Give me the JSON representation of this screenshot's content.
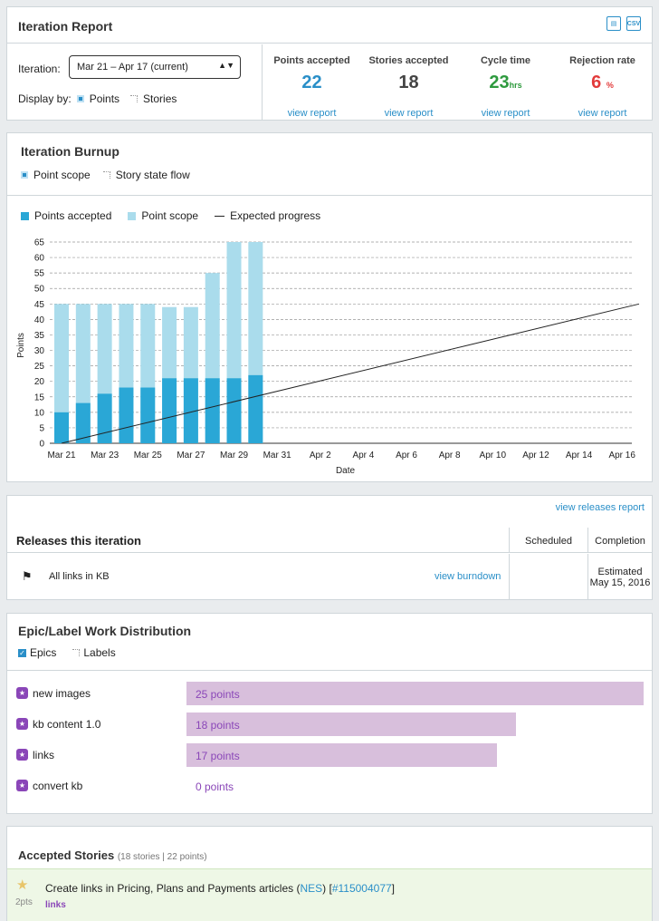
{
  "report": {
    "title": "Iteration Report",
    "iteration_label": "Iteration:",
    "iteration_value": "Mar 21 – Apr 17 (current)",
    "display_by": "Display by:",
    "display_points": "Points",
    "display_stories": "Stories",
    "stats": [
      {
        "label": "Points accepted",
        "value": "22",
        "unit": "",
        "color": "#2a8fc8",
        "link": "view report"
      },
      {
        "label": "Stories accepted",
        "value": "18",
        "unit": "",
        "color": "#444444",
        "link": "view report"
      },
      {
        "label": "Cycle time",
        "value": "23",
        "unit": "hrs",
        "color": "#2e9a3e",
        "link": "view report"
      },
      {
        "label": "Rejection rate",
        "value": "6",
        "unit": "%",
        "color": "#e23b3b",
        "link": "view report"
      }
    ]
  },
  "burnup": {
    "title": "Iteration Burnup",
    "opt_point_scope": "Point scope",
    "opt_story_state": "Story state flow",
    "legend": {
      "accepted": "Points accepted",
      "scope": "Point scope",
      "expected": "Expected progress"
    },
    "colors": {
      "accepted": "#2aa7d6",
      "scope": "#aadcec",
      "expected": "#222222"
    }
  },
  "chart_data": {
    "type": "bar",
    "categories": [
      "Mar 21",
      "Mar 22",
      "Mar 23",
      "Mar 24",
      "Mar 25",
      "Mar 26",
      "Mar 27",
      "Mar 28",
      "Mar 29",
      "Mar 30"
    ],
    "x_tick_labels": [
      "Mar 21",
      "Mar 23",
      "Mar 25",
      "Mar 27",
      "Mar 29",
      "Mar 31",
      "Apr 2",
      "Apr 4",
      "Apr 6",
      "Apr 8",
      "Apr 10",
      "Apr 12",
      "Apr 14",
      "Apr 16"
    ],
    "series": [
      {
        "name": "Points accepted",
        "values": [
          10,
          13,
          16,
          18,
          18,
          21,
          21,
          21,
          21,
          22
        ]
      },
      {
        "name": "Point scope",
        "values": [
          45,
          45,
          45,
          45,
          45,
          44,
          44,
          55,
          65,
          65
        ]
      }
    ],
    "expected_progress": {
      "name": "Expected progress",
      "from": [
        "Mar 21",
        0
      ],
      "to": [
        "Apr 17",
        45
      ]
    },
    "xlabel": "Date",
    "ylabel": "Points",
    "ylim": [
      0,
      65
    ],
    "yticks": [
      0,
      5,
      10,
      15,
      20,
      25,
      30,
      35,
      40,
      45,
      50,
      55,
      60,
      65
    ],
    "x_range": [
      "Mar 21",
      "Apr 17"
    ],
    "grid": true,
    "legend_position": "top-left"
  },
  "releases": {
    "view_link": "view releases report",
    "title": "Releases this iteration",
    "col_scheduled": "Scheduled",
    "col_completion": "Completion",
    "rows": [
      {
        "name": "All links in KB",
        "burndown": "view burndown",
        "scheduled": "",
        "completion_1": "Estimated",
        "completion_2": "May 15, 2016"
      }
    ]
  },
  "epics": {
    "title": "Epic/Label Work Distribution",
    "opt_epics": "Epics",
    "opt_labels": "Labels",
    "rows": [
      {
        "name": "new images",
        "points": 25,
        "text": "25 points"
      },
      {
        "name": "kb content 1.0",
        "points": 18,
        "text": "18 points"
      },
      {
        "name": "links",
        "points": 17,
        "text": "17 points"
      },
      {
        "name": "convert kb",
        "points": 0,
        "text": "0 points"
      }
    ]
  },
  "stories": {
    "title": "Accepted Stories",
    "summary": "(18 stories | 22 points)",
    "items": [
      {
        "points": "2pts",
        "title_text": "Create links in Pricing, Plans and Payments articles (",
        "project": "NES",
        "title_mid": ") [",
        "id": "#115004077",
        "title_end": "]",
        "label": "links"
      }
    ]
  }
}
